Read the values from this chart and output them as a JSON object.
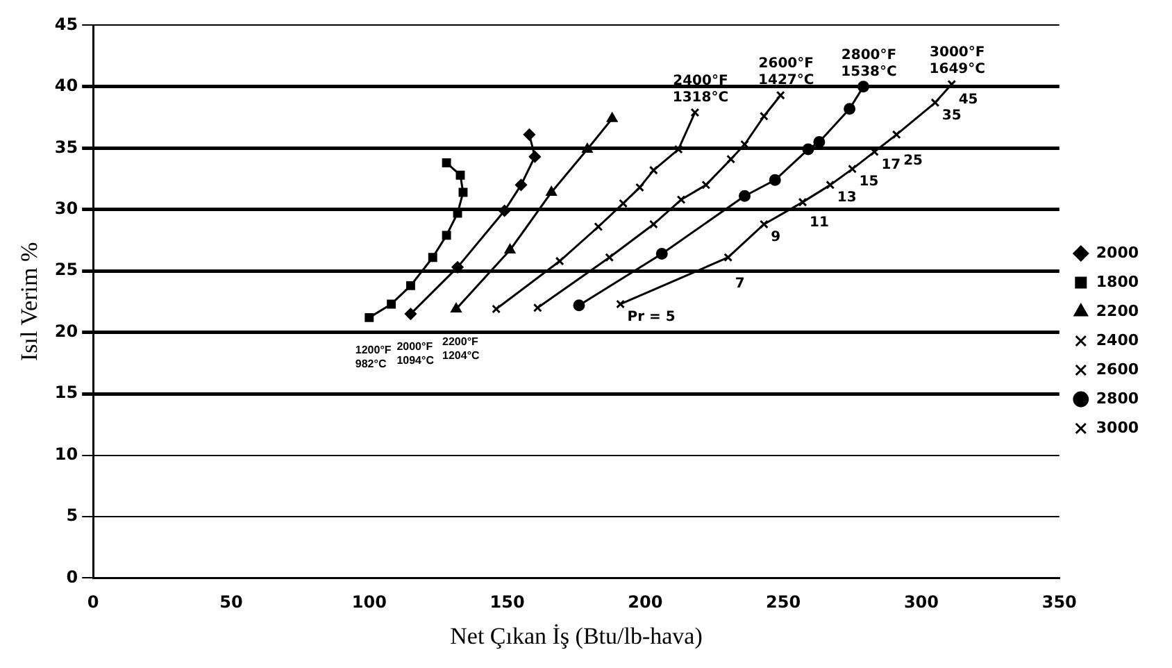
{
  "chart_data": {
    "type": "line",
    "xlabel": "Net Çıkan İş (Btu/lb-hava)",
    "ylabel": "Isıl Verim %",
    "xlim": [
      0,
      350
    ],
    "xticks": [
      0,
      50,
      100,
      150,
      200,
      250,
      300,
      350
    ],
    "ylim": [
      0,
      45
    ],
    "yticks": [
      0,
      5,
      10,
      15,
      20,
      25,
      30,
      35,
      40,
      45
    ],
    "grid": "y",
    "legend": "right",
    "line_style": "solid",
    "series": [
      {
        "name": "2000",
        "color": "#000000",
        "marker": "diamond",
        "x": [
          115,
          132,
          149,
          155,
          160,
          158
        ],
        "values": [
          21.5,
          25.3,
          29.9,
          32,
          34.3,
          36.1
        ]
      },
      {
        "name": "1800",
        "color": "#000000",
        "marker": "square",
        "x": [
          100,
          108,
          115,
          123,
          128,
          132,
          134,
          133,
          128
        ],
        "values": [
          21.2,
          22.3,
          23.8,
          26.1,
          27.9,
          29.7,
          31.4,
          32.8,
          33.8
        ]
      },
      {
        "name": "2200",
        "color": "#000000",
        "marker": "triangle",
        "x": [
          131.5,
          151,
          166,
          179,
          188
        ],
        "values": [
          21.9,
          26.7,
          31.4,
          34.9,
          37.4
        ]
      },
      {
        "name": "2400",
        "color": "#000000",
        "marker": "cross",
        "x": [
          146,
          169,
          183,
          192,
          198,
          203,
          212,
          218
        ],
        "values": [
          21.9,
          25.8,
          28.6,
          30.5,
          31.8,
          33.2,
          34.9,
          37.9
        ]
      },
      {
        "name": "2600",
        "color": "#000000",
        "marker": "cross",
        "x": [
          161,
          187,
          203,
          213,
          222,
          231,
          236,
          243,
          249
        ],
        "values": [
          22,
          26.1,
          28.8,
          30.8,
          32,
          34.1,
          35.3,
          37.6,
          39.3
        ]
      },
      {
        "name": "2800",
        "color": "#000000",
        "marker": "circle",
        "x": [
          176,
          206,
          236,
          247,
          259,
          263,
          274,
          279
        ],
        "values": [
          22.2,
          26.4,
          31.1,
          32.4,
          34.9,
          35.5,
          38.2,
          40
        ]
      },
      {
        "name": "3000",
        "color": "#000000",
        "marker": "cross",
        "x": [
          191,
          230,
          243,
          257,
          267,
          275,
          283,
          291,
          305,
          311
        ],
        "values": [
          22.3,
          26.1,
          28.8,
          30.6,
          32,
          33.3,
          34.7,
          36.1,
          38.7,
          40.2
        ]
      }
    ],
    "annotations": [
      {
        "text": "1200°F\n982°C",
        "x": 100,
        "y": 21.2
      },
      {
        "text": "2000°F\n1094°C",
        "x": 115,
        "y": 21.5
      },
      {
        "text": "2200°F\n1204°C",
        "x": 131.5,
        "y": 21.9
      },
      {
        "text": "2400°F\n1318°C",
        "x": 218,
        "y": 37.9
      },
      {
        "text": "2600°F\n1427°C",
        "x": 249,
        "y": 39.3
      },
      {
        "text": "2800°F\n1538°C",
        "x": 279,
        "y": 40
      },
      {
        "text": "3000°F\n1649°C",
        "x": 311,
        "y": 40.2
      },
      {
        "text": "Pr = 5",
        "x": 191,
        "y": 22.3
      },
      {
        "text": "7",
        "x": 230,
        "y": 26.1
      },
      {
        "text": "9",
        "x": 243,
        "y": 28.8
      },
      {
        "text": "11",
        "x": 257,
        "y": 30.6
      },
      {
        "text": "13",
        "x": 267,
        "y": 32
      },
      {
        "text": "15",
        "x": 275,
        "y": 33.3
      },
      {
        "text": "17",
        "x": 283,
        "y": 34.7
      },
      {
        "text": "25",
        "x": 291,
        "y": 36.1
      },
      {
        "text": "35",
        "x": 305,
        "y": 38.7
      },
      {
        "text": "45",
        "x": 311,
        "y": 40.2
      }
    ]
  }
}
